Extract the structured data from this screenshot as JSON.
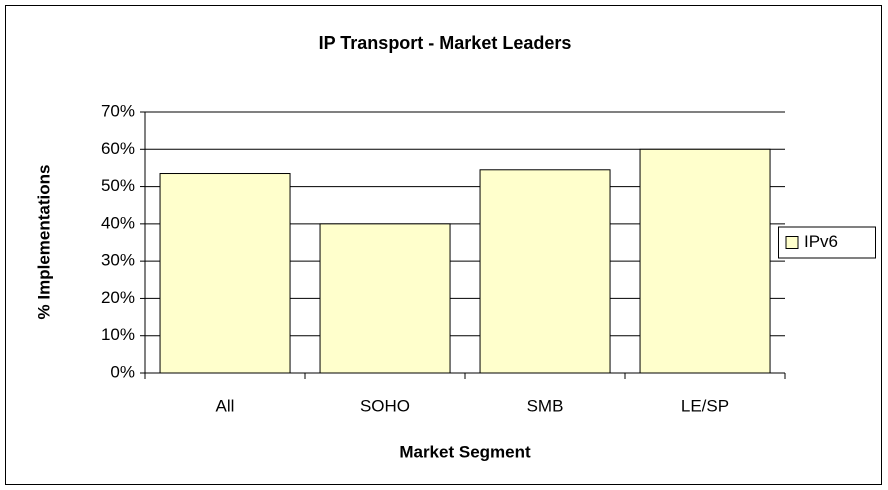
{
  "chart_data": {
    "type": "bar",
    "title": "IP Transport - Market Leaders",
    "x_label": "Market Segment",
    "y_label": "% Implementations",
    "categories": [
      "All",
      "SOHO",
      "SMB",
      "LE/SP"
    ],
    "series": [
      {
        "name": "IPv6",
        "color": "#ffffcc",
        "values": [
          53.5,
          40,
          54.5,
          60
        ]
      }
    ],
    "ylim": [
      0,
      70
    ],
    "yticks": [
      {
        "value": 0,
        "label": "0%"
      },
      {
        "value": 10,
        "label": "10%"
      },
      {
        "value": 20,
        "label": "20%"
      },
      {
        "value": 30,
        "label": "30%"
      },
      {
        "value": 40,
        "label": "40%"
      },
      {
        "value": 50,
        "label": "50%"
      },
      {
        "value": 60,
        "label": "60%"
      },
      {
        "value": 70,
        "label": "70%"
      }
    ],
    "grid": true,
    "legend": "right"
  }
}
